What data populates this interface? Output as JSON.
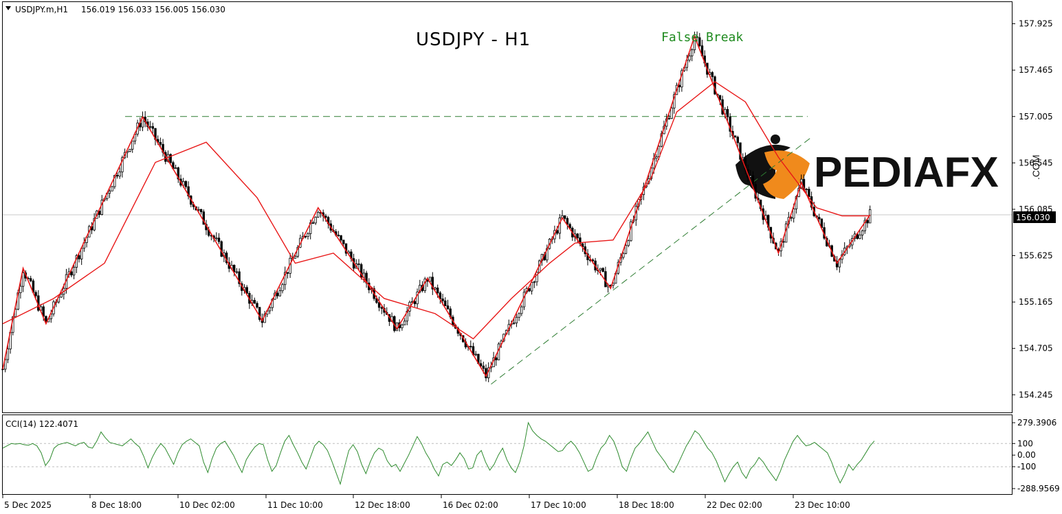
{
  "header": {
    "symbol": "USDJPY.m,H1",
    "ohlc": "156.019 156.033 156.005 156.030"
  },
  "title": "USDJPY - H1",
  "annotation": "False Break",
  "watermark": {
    "text": "PEDIAFX",
    "sub": ".COM",
    "logo_color": "#f08a1c"
  },
  "current_price_label": "156.030",
  "indicator": {
    "label": "CCI(14) 122.4071"
  },
  "colors": {
    "candle": "#000000",
    "zigzag": "#e81717",
    "ma": "#e81717",
    "trend": "#2e7d32",
    "cci": "#2e8b2e",
    "annotation": "#1e8a1e"
  },
  "chart_data": [
    {
      "type": "candlestick",
      "title": "USDJPY - H1",
      "y_ticks": [
        "157.925",
        "157.465",
        "157.005",
        "156.545",
        "156.085",
        "155.625",
        "155.165",
        "154.705",
        "154.245"
      ],
      "ylim": [
        154.07,
        158.14
      ],
      "x_ticks": [
        "5 Dec 2025",
        "8 Dec 18:00",
        "10 Dec 02:00",
        "11 Dec 10:00",
        "12 Dec 18:00",
        "16 Dec 02:00",
        "17 Dec 10:00",
        "18 Dec 18:00",
        "22 Dec 02:00",
        "23 Dec 10:00"
      ],
      "current_price": 156.03,
      "resistance_level": 157.005,
      "zigzag_pivots": [
        [
          0,
          154.5
        ],
        [
          8,
          155.5
        ],
        [
          17,
          154.95
        ],
        [
          55,
          157.0
        ],
        [
          102,
          154.98
        ],
        [
          124,
          156.1
        ],
        [
          155,
          154.9
        ],
        [
          167,
          155.4
        ],
        [
          190,
          154.43
        ],
        [
          220,
          156.0
        ],
        [
          239,
          155.3
        ],
        [
          272,
          157.8
        ],
        [
          305,
          155.65
        ],
        [
          314,
          156.35
        ],
        [
          328,
          155.55
        ],
        [
          341,
          156.03
        ]
      ],
      "ma_points": [
        [
          0,
          154.95
        ],
        [
          20,
          155.2
        ],
        [
          40,
          155.55
        ],
        [
          60,
          156.55
        ],
        [
          80,
          156.75
        ],
        [
          100,
          156.2
        ],
        [
          115,
          155.55
        ],
        [
          130,
          155.65
        ],
        [
          150,
          155.2
        ],
        [
          170,
          155.05
        ],
        [
          185,
          154.8
        ],
        [
          200,
          155.2
        ],
        [
          215,
          155.55
        ],
        [
          225,
          155.75
        ],
        [
          240,
          155.78
        ],
        [
          255,
          156.4
        ],
        [
          265,
          157.05
        ],
        [
          280,
          157.35
        ],
        [
          292,
          157.15
        ],
        [
          305,
          156.6
        ],
        [
          320,
          156.1
        ],
        [
          330,
          156.02
        ],
        [
          341,
          156.02
        ]
      ],
      "trendline": [
        [
          192,
          154.35
        ],
        [
          318,
          156.8
        ]
      ]
    },
    {
      "type": "line",
      "title": "CCI(14) 122.4071",
      "y_ticks": [
        "279.3906",
        "100",
        "0.00",
        "-100",
        "-288.9569"
      ],
      "ylim": [
        -288.9569,
        279.3906
      ],
      "levels": [
        100,
        -100
      ],
      "values": [
        60,
        80,
        100,
        95,
        100,
        90,
        85,
        100,
        80,
        20,
        -90,
        -40,
        60,
        90,
        100,
        110,
        95,
        80,
        100,
        110,
        70,
        60,
        120,
        200,
        150,
        110,
        100,
        90,
        80,
        110,
        140,
        100,
        70,
        -10,
        -110,
        -20,
        50,
        100,
        60,
        -10,
        -80,
        20,
        90,
        120,
        140,
        110,
        80,
        -60,
        -150,
        -30,
        60,
        100,
        120,
        60,
        0,
        -80,
        -150,
        -40,
        20,
        70,
        100,
        90,
        -40,
        -140,
        -90,
        20,
        120,
        170,
        90,
        20,
        -60,
        -120,
        -20,
        80,
        120,
        90,
        40,
        -50,
        -150,
        -250,
        -100,
        40,
        90,
        30,
        -80,
        -160,
        -60,
        20,
        60,
        40,
        -50,
        -100,
        -80,
        -140,
        -70,
        0,
        80,
        160,
        100,
        20,
        -40,
        -120,
        -180,
        -80,
        -60,
        -90,
        -40,
        20,
        -30,
        -120,
        -110,
        0,
        40,
        -60,
        -130,
        -80,
        0,
        60,
        -40,
        -110,
        -150,
        -60,
        80,
        280,
        210,
        170,
        140,
        120,
        90,
        60,
        30,
        40,
        90,
        120,
        80,
        20,
        -60,
        -140,
        -120,
        -20,
        60,
        100,
        170,
        120,
        20,
        -100,
        -140,
        -30,
        60,
        100,
        150,
        200,
        120,
        40,
        -10,
        -60,
        -120,
        -150,
        -80,
        0,
        80,
        140,
        210,
        180,
        120,
        60,
        20,
        -50,
        -140,
        -230,
        -160,
        -100,
        -60,
        -150,
        -200,
        -120,
        -80,
        -20,
        -60,
        -120,
        -170,
        -220,
        -140,
        -40,
        40,
        120,
        170,
        120,
        80,
        90,
        110,
        80,
        50,
        20,
        -60,
        -160,
        -240,
        -170,
        -80,
        -130,
        -80,
        -40,
        20,
        80,
        122
      ]
    }
  ]
}
